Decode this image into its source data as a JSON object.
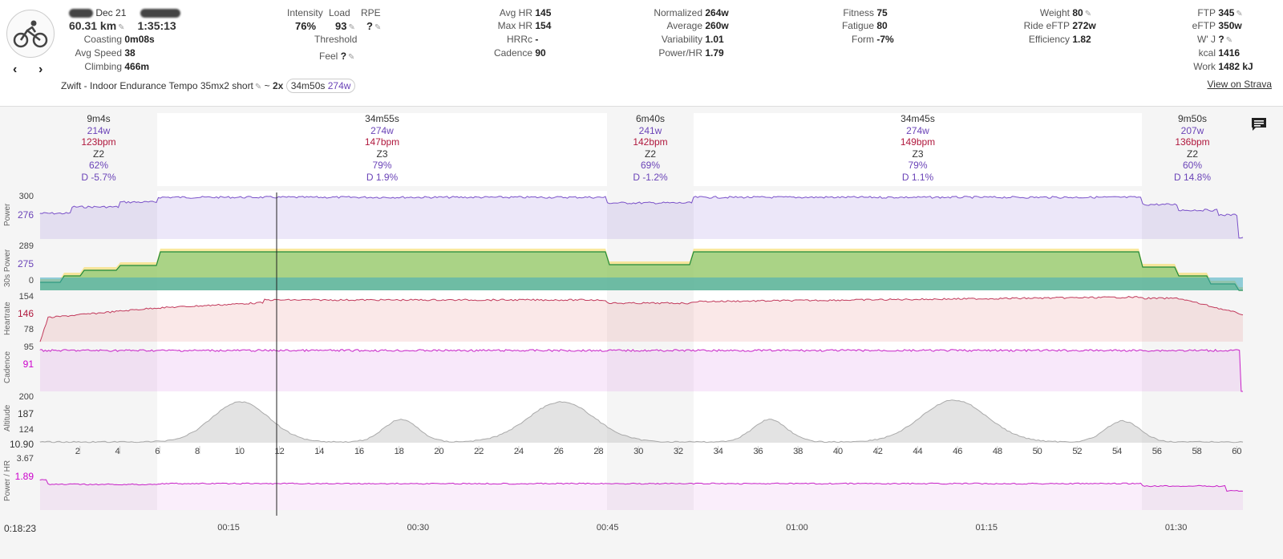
{
  "header": {
    "date": "Dec 21",
    "distance": "60.31 km",
    "duration": "1:35:13",
    "coasting_label": "Coasting",
    "coasting": "0m08s",
    "avg_speed_label": "Avg Speed",
    "avg_speed": "38",
    "climbing_label": "Climbing",
    "climbing": "466m",
    "intensity_label": "Intensity",
    "intensity": "76%",
    "load_label": "Load",
    "load": "93",
    "rpe_label": "RPE",
    "rpe": "?",
    "threshold_label": "Threshold",
    "feel_label": "Feel",
    "feel": "?",
    "avg_hr_label": "Avg HR",
    "avg_hr": "145",
    "max_hr_label": "Max HR",
    "max_hr": "154",
    "hrrc_label": "HRRc",
    "hrrc": "-",
    "cadence_label": "Cadence",
    "cadence": "90",
    "normalized_label": "Normalized",
    "normalized": "264w",
    "average_label": "Average",
    "average": "260w",
    "variability_label": "Variability",
    "variability": "1.01",
    "power_hr_label": "Power/HR",
    "power_hr": "1.79",
    "fitness_label": "Fitness",
    "fitness": "75",
    "fatigue_label": "Fatigue",
    "fatigue": "80",
    "form_label": "Form",
    "form": "-7%",
    "weight_label": "Weight",
    "weight": "80",
    "ride_eftp_label": "Ride eFTP",
    "ride_eftp": "272w",
    "efficiency_label": "Efficiency",
    "efficiency": "1.82",
    "ftp_label": "FTP",
    "ftp": "345",
    "eftp_label": "eFTP",
    "eftp": "350w",
    "wj_label": "W' J",
    "wj": "?",
    "kcal_label": "kcal",
    "kcal": "1416",
    "work_label": "Work",
    "work": "1482 kJ",
    "activity_name": "Zwift - Indoor Endurance Tempo 35mx2 short",
    "tilde": "~",
    "reps": "2x",
    "interval_time": "34m50s",
    "interval_watts": "274w",
    "view_strava": "View on Strava",
    "prev_icon": "chevron-left-icon",
    "next_icon": "chevron-right-icon",
    "avatar_icon": "bicycle-icon"
  },
  "intervals": [
    {
      "time": "9m4s",
      "watts": "214w",
      "bpm": "123bpm",
      "zone": "Z2",
      "pct": "62%",
      "drift": "D -5.7%"
    },
    {
      "time": "34m55s",
      "watts": "274w",
      "bpm": "147bpm",
      "zone": "Z3",
      "pct": "79%",
      "drift": "D 1.9%"
    },
    {
      "time": "6m40s",
      "watts": "241w",
      "bpm": "142bpm",
      "zone": "Z2",
      "pct": "69%",
      "drift": "D -1.2%"
    },
    {
      "time": "34m45s",
      "watts": "274w",
      "bpm": "149bpm",
      "zone": "Z3",
      "pct": "79%",
      "drift": "D 1.1%"
    },
    {
      "time": "9m50s",
      "watts": "207w",
      "bpm": "136bpm",
      "zone": "Z2",
      "pct": "60%",
      "drift": "D 14.8%"
    }
  ],
  "charts": {
    "power": {
      "label": "Power",
      "top": "300",
      "cursor": "276"
    },
    "power30": {
      "label": "30s Power",
      "top": "289",
      "cursor": "275",
      "bottom": "0"
    },
    "heartrate": {
      "label": "Heartrate",
      "top": "154",
      "cursor": "146",
      "bottom": "78"
    },
    "cadence": {
      "label": "Cadence",
      "top": "95",
      "cursor": "91"
    },
    "altitude": {
      "label": "Altitude",
      "top": "200",
      "cursor": "187",
      "bottom": "124"
    },
    "distance_cursor": "10.90",
    "distance_ticks": [
      "2",
      "4",
      "6",
      "8",
      "10",
      "12",
      "14",
      "16",
      "18",
      "20",
      "22",
      "24",
      "26",
      "28",
      "30",
      "32",
      "34",
      "36",
      "38",
      "40",
      "42",
      "44",
      "46",
      "48",
      "50",
      "52",
      "54",
      "56",
      "58",
      "60"
    ],
    "powerhr": {
      "label": "Power / HR",
      "top": "3.67",
      "cursor": "1.89"
    },
    "time_cursor": "0:18:23",
    "time_ticks": [
      "00:15",
      "00:30",
      "00:45",
      "01:00",
      "01:15",
      "01:30"
    ]
  },
  "chat_icon": "comment-icon"
}
